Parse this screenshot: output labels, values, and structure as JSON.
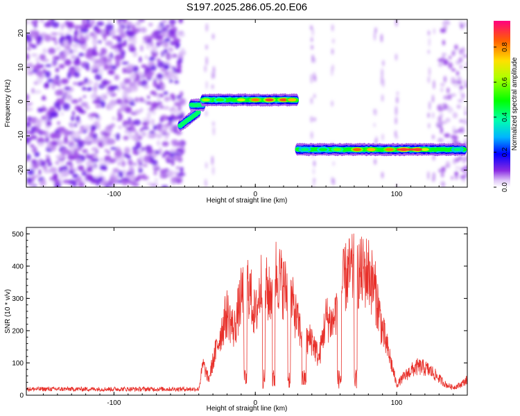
{
  "figure_title": "S197.2025.286.05.20.E06",
  "chart_data": [
    {
      "type": "heatmap",
      "title": "S197.2025.286.05.20.E06",
      "xlabel": "Height of straight line (km)",
      "ylabel": "Frequency (Hz)",
      "xlim": [
        -162,
        150
      ],
      "ylim": [
        -25,
        24
      ],
      "xticks": [
        -100,
        0,
        100
      ],
      "yticks": [
        -20,
        -10,
        0,
        10,
        20
      ],
      "colorbar": {
        "label": "Normalized spectral amplitude",
        "range": [
          0,
          0.95
        ],
        "ticks": [
          "0.0",
          "0.2",
          "0.4",
          "0.6",
          "0.8"
        ]
      },
      "ridge_segments": [
        {
          "x_start": -53,
          "x_end": -40,
          "freq": -7,
          "peak_amplitude": 0.35
        },
        {
          "x_start": -45,
          "x_end": -37,
          "freq": -1,
          "peak_amplitude": 0.3
        },
        {
          "x_start": -37,
          "x_end": 30,
          "freq": 0.5,
          "peak_amplitude": 0.92
        },
        {
          "x_start": 30,
          "x_end": 148,
          "freq": -14,
          "peak_amplitude": 0.95
        }
      ],
      "noise_region_until_x": -55
    },
    {
      "type": "line",
      "xlabel": "Height of straight line (km)",
      "ylabel": "SNR (10 * v/v)",
      "xlim": [
        -162,
        150
      ],
      "ylim": [
        0,
        520
      ],
      "xticks": [
        -100,
        0,
        100
      ],
      "yticks": [
        0,
        100,
        200,
        300,
        400,
        500
      ],
      "series": [
        {
          "name": "SNR",
          "color": "#e8302a",
          "envelope_x": [
            -162,
            -40,
            -37,
            -33,
            -30,
            -25,
            -20,
            -15,
            -10,
            -5,
            0,
            5,
            10,
            15,
            20,
            25,
            30,
            35,
            40,
            45,
            50,
            55,
            60,
            65,
            70,
            75,
            80,
            85,
            90,
            95,
            100,
            105,
            110,
            115,
            120,
            125,
            130,
            135,
            140,
            145,
            150
          ],
          "envelope_y": [
            18,
            22,
            120,
            60,
            130,
            230,
            320,
            250,
            380,
            430,
            300,
            460,
            380,
            480,
            420,
            380,
            280,
            200,
            220,
            140,
            300,
            280,
            400,
            470,
            480,
            470,
            480,
            400,
            250,
            150,
            40,
            70,
            95,
            110,
            105,
            90,
            65,
            40,
            30,
            40,
            60
          ]
        }
      ],
      "dropouts": [
        [
          -8,
          -6
        ],
        [
          5,
          7
        ],
        [
          12,
          14
        ],
        [
          23,
          25
        ],
        [
          33,
          36
        ],
        [
          58,
          61
        ],
        [
          70,
          72
        ]
      ]
    }
  ],
  "colors": {
    "line": "#e8302a",
    "background": "#ffffff",
    "axis": "#000000"
  }
}
